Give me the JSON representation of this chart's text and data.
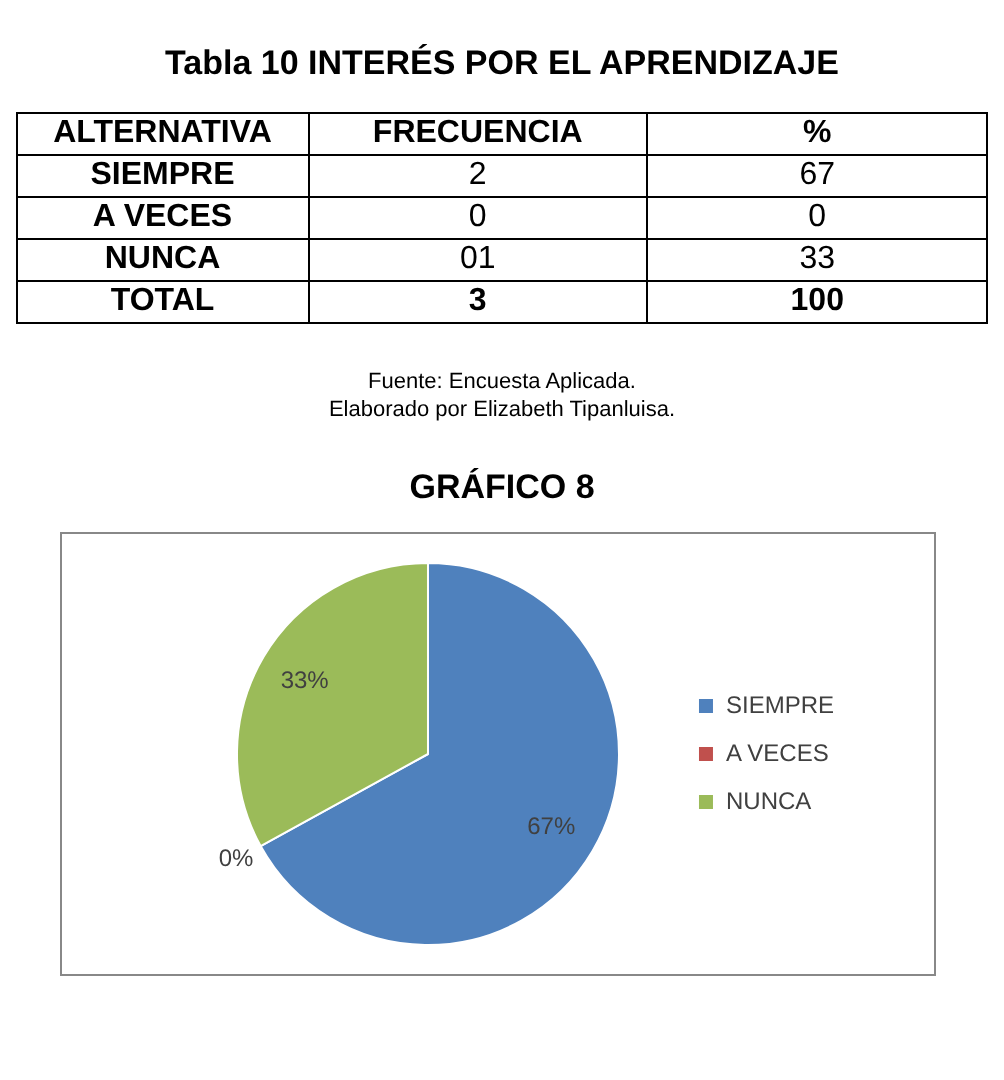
{
  "chart_data": [
    {
      "type": "other",
      "title": "Tabla 10 INTERÉS POR EL APRENDIZAJE",
      "categories": [
        "ALTERNATIVA",
        "FRECUENCIA",
        "%"
      ],
      "annotations": [
        "SIEMPRE",
        "2",
        "67",
        "A VECES",
        "0",
        "0",
        "NUNCA",
        "01",
        "33",
        "TOTAL",
        "3",
        "100"
      ]
    },
    {
      "type": "pie",
      "title": "GRÁFICO 8",
      "annotations": [
        "Fuente: Encuesta Aplicada.",
        "Elaborado por Elizabeth Tipanluisa."
      ],
      "categories": [
        "SIEMPRE",
        "A VECES",
        "NUNCA"
      ],
      "values": [
        67,
        0,
        33
      ],
      "colors": [
        "#4f81bd",
        "#c0504d",
        "#9bbb59"
      ],
      "value_labels": [
        "67%",
        "0%",
        "33%"
      ],
      "legend": "right"
    }
  ]
}
